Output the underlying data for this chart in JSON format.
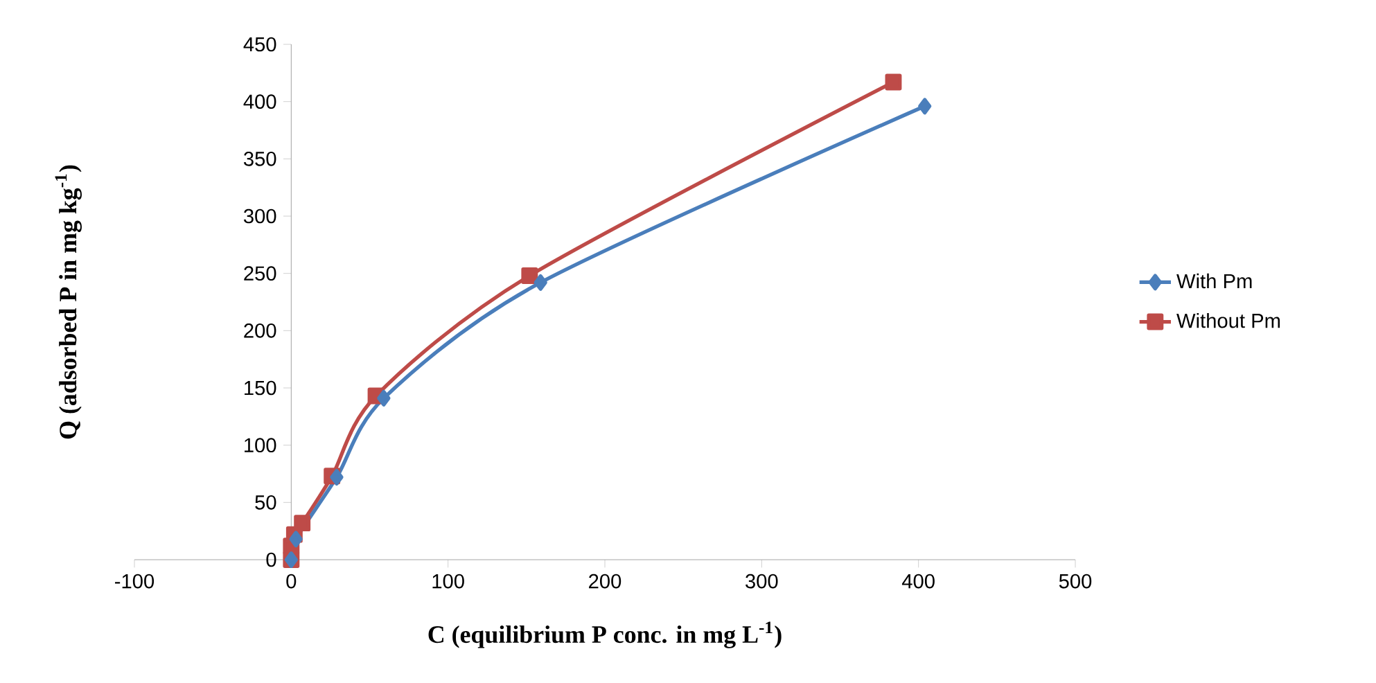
{
  "chart_data": {
    "type": "line",
    "xlabel": "C (equilibrium P conc. in mg L$^{-1}$)",
    "ylabel": "Q (adsorbed P in mg kg$^{-1}$)",
    "series": [
      {
        "name": "With Pm",
        "color": "#4a7ebb",
        "marker": "diamond",
        "x": [
          0,
          1,
          3,
          8,
          29,
          59,
          159,
          404
        ],
        "values": [
          0,
          null,
          18,
          null,
          72,
          141,
          242,
          396
        ]
      },
      {
        "name": "Without Pm",
        "color": "#be4b48",
        "marker": "square",
        "x": [
          0,
          0,
          2,
          7,
          26,
          54,
          152,
          384
        ],
        "values": [
          0,
          12,
          22,
          32,
          73,
          143,
          248,
          417
        ]
      }
    ],
    "xlim": [
      -100,
      500
    ],
    "xticks": [
      -100,
      0,
      100,
      200,
      300,
      400,
      500
    ],
    "ylim": [
      0,
      450
    ],
    "yticks": [
      0,
      50,
      100,
      150,
      200,
      250,
      300,
      350,
      400,
      450
    ],
    "grid": false,
    "legend": "right",
    "line_style": "solid"
  }
}
